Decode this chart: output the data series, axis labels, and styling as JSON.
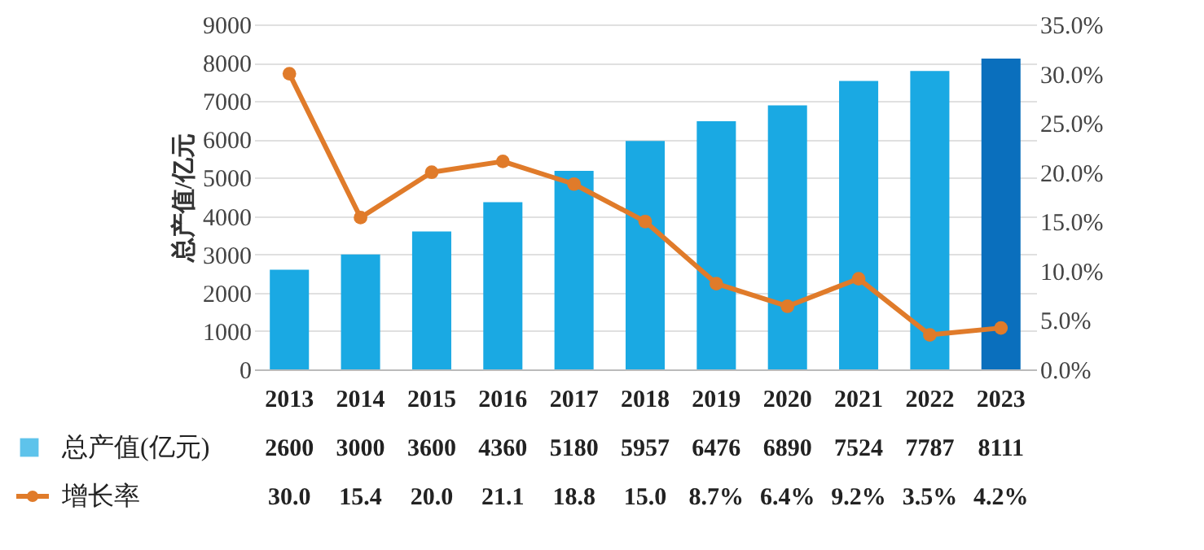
{
  "chart_data": {
    "type": "bar",
    "ylabel": "总产值/亿元",
    "categories": [
      "2013",
      "2014",
      "2015",
      "2016",
      "2017",
      "2018",
      "2019",
      "2020",
      "2021",
      "2022",
      "2023"
    ],
    "series": [
      {
        "name": "总产值(亿元)",
        "colors": [
          "#1aa9e3",
          "#1aa9e3",
          "#1aa9e3",
          "#1aa9e3",
          "#1aa9e3",
          "#1aa9e3",
          "#1aa9e3",
          "#1aa9e3",
          "#1aa9e3",
          "#1aa9e3",
          "#0a6fbd"
        ],
        "color": "#1aa9e3",
        "values": [
          2600,
          3000,
          3600,
          4360,
          5180,
          5957,
          6476,
          6890,
          7524,
          7787,
          8111
        ],
        "value_labels": [
          "2600",
          "3000",
          "3600",
          "4360",
          "5180",
          "5957",
          "6476",
          "6890",
          "7524",
          "7787",
          "8111"
        ]
      },
      {
        "name": "增长率",
        "type": "line",
        "axis": "y2",
        "color": "#e07b2a",
        "marker": "circle",
        "values": [
          30.0,
          15.4,
          20.0,
          21.1,
          18.8,
          15.0,
          8.7,
          6.4,
          9.2,
          3.5,
          4.2
        ],
        "value_labels": [
          "30.0",
          "15.4",
          "20.0",
          "21.1",
          "18.8",
          "15.0",
          "8.7%",
          "6.4%",
          "9.2%",
          "3.5%",
          "4.2%"
        ]
      }
    ],
    "ylim": [
      0,
      9000
    ],
    "yticks": [
      0,
      1000,
      2000,
      3000,
      4000,
      5000,
      6000,
      7000,
      8000,
      9000
    ],
    "y2lim": [
      0,
      35
    ],
    "y2ticks": [
      {
        "value": 0,
        "label": "0.0%"
      },
      {
        "value": 5,
        "label": "5.0%"
      },
      {
        "value": 10,
        "label": "10.0%"
      },
      {
        "value": 15,
        "label": "15.0%"
      },
      {
        "value": 20,
        "label": "20.0%"
      },
      {
        "value": 25,
        "label": "25.0%"
      },
      {
        "value": 30,
        "label": "30.0%"
      },
      {
        "value": 35,
        "label": "35.0%"
      }
    ],
    "grid": "y",
    "legend": "bottom left"
  }
}
